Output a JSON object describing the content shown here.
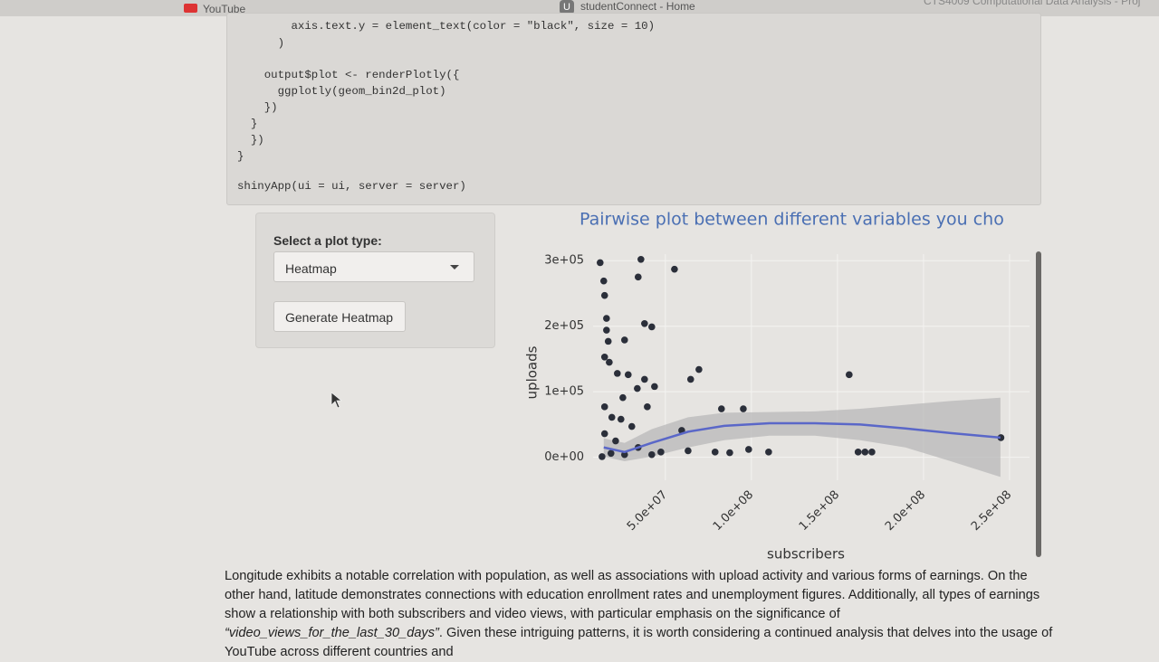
{
  "browser_tabs": [
    "YouTube",
    "studentConnect - Home",
    "CTS4009 Computational Data Analysis - Proj"
  ],
  "tab_icon": "U",
  "code_lines": [
    "        axis.text.y = element_text(color = \"black\", size = 10)",
    "      )",
    "    output$plot <- renderPlotly({",
    "      ggplotly(geom_bin2d_plot)",
    "    })",
    "  }",
    "  })",
    "}",
    "shinyApp(ui = ui, server = server)"
  ],
  "sidebar": {
    "select_label": "Select a plot type:",
    "select_value": "Heatmap",
    "button": "Generate Heatmap"
  },
  "chart_data": {
    "type": "scatter",
    "title": "Pairwise plot between different variables you cho",
    "x_label": "subscribers",
    "y_label": "uploads",
    "color": "#2b2f3a",
    "x": [
      12100000,
      35800000,
      55300000,
      34200000,
      14200000,
      14700000,
      15800000,
      15800000,
      37900000,
      42100000,
      16800000,
      26300000,
      14700000,
      17400000,
      22100000,
      28400000,
      37900000,
      69500000,
      64700000,
      43700000,
      156800000,
      25300000,
      33700000,
      14700000,
      18900000,
      24200000,
      39500000,
      82600000,
      95300000,
      30500000,
      59500000,
      14700000,
      21100000,
      34200000,
      47400000,
      63200000,
      78900000,
      87400000,
      98400000,
      110000000,
      162000000,
      166000000,
      170000000,
      245000000,
      18400000,
      26300000,
      42100000,
      13200000
    ],
    "values": [
      297000,
      302000,
      287000,
      275000,
      269000,
      247000,
      212000,
      194000,
      204000,
      199000,
      177000,
      179000,
      153000,
      145000,
      128000,
      126000,
      119000,
      134000,
      119000,
      108000,
      126000,
      91000,
      105000,
      77000,
      61000,
      58000,
      77000,
      74000,
      74000,
      47000,
      41000,
      36000,
      25000,
      15000,
      8000,
      10000,
      8000,
      7000,
      12000,
      8000,
      8000,
      8000,
      8000,
      30000,
      6000,
      4000,
      4000,
      1000
    ],
    "trend": {
      "color": "#5a67c8",
      "band_color": "#b8b8b8",
      "x": [
        14200000,
        26300000,
        42100000,
        63200000,
        84200000,
        110500000,
        136800000,
        163200000,
        189500000,
        215800000,
        244700000
      ],
      "values": [
        15000,
        8000,
        22000,
        39000,
        48000,
        52000,
        52000,
        50000,
        44000,
        37000,
        30000
      ],
      "lower": [
        1000,
        -6000,
        1000,
        15000,
        26000,
        33000,
        33000,
        26000,
        15000,
        -6000,
        -30000
      ],
      "upper": [
        29000,
        22000,
        43000,
        61000,
        68000,
        69000,
        70000,
        74000,
        80000,
        86000,
        91000
      ]
    },
    "xlim": [
      8000000,
      261600000
    ],
    "ylim": [
      -35000,
      310000
    ],
    "xticks": [
      {
        "value": 50000000,
        "label": "5.0e+07"
      },
      {
        "value": 100000000,
        "label": "1.0e+08"
      },
      {
        "value": 150000000,
        "label": "1.5e+08"
      },
      {
        "value": 200000000,
        "label": "2.0e+08"
      },
      {
        "value": 250000000,
        "label": "2.5e+08"
      }
    ],
    "yticks": [
      {
        "value": 0,
        "label": "0e+00"
      },
      {
        "value": 100000,
        "label": "1e+05"
      },
      {
        "value": 200000,
        "label": "2e+05"
      },
      {
        "value": 300000,
        "label": "3e+05"
      }
    ],
    "grid": true
  },
  "paragraph": {
    "before": "Longitude exhibits a notable correlation with population, as well as associations with upload activity and various forms of earnings. On the other hand, latitude demonstrates connections with education enrollment rates and unemployment figures. Additionally, all types of earnings show a relationship with both subscribers and video views, with particular emphasis on the significance of ",
    "emphasis": "“video_views_for_the_last_30_days”",
    "after": ". Given these intriguing patterns, it is worth considering a continued analysis that delves into the usage of YouTube across different countries and"
  }
}
